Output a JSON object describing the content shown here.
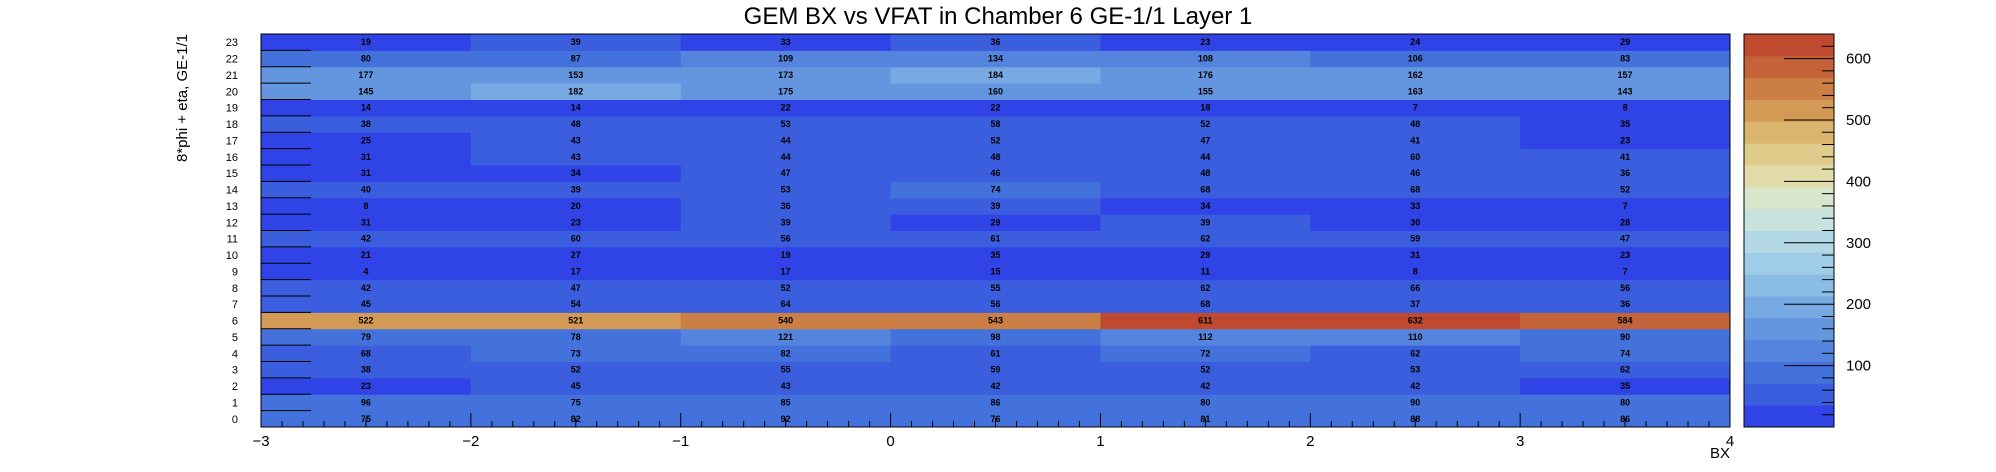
{
  "chart_data": {
    "type": "heatmap",
    "title": "GEM BX vs VFAT in Chamber 6 GE-1/1 Layer 1",
    "xlabel": "BX",
    "ylabel": "8*phi + eta, GE-1/1",
    "x_bins": [
      -3,
      -2,
      -1,
      0,
      1,
      2,
      3
    ],
    "x_bin_width": 1,
    "xlim": [
      -3,
      4
    ],
    "x_ticks": [
      "−3",
      "−2",
      "−1",
      "0",
      "1",
      "2",
      "3",
      "4"
    ],
    "y_bins": [
      0,
      1,
      2,
      3,
      4,
      5,
      6,
      7,
      8,
      9,
      10,
      11,
      12,
      13,
      14,
      15,
      16,
      17,
      18,
      19,
      20,
      21,
      22,
      23
    ],
    "ylim": [
      0,
      24
    ],
    "zlim": [
      0,
      640
    ],
    "z_ticks": [
      100,
      200,
      300,
      400,
      500,
      600
    ],
    "values": [
      [
        75,
        82,
        92,
        76,
        81,
        88,
        86
      ],
      [
        96,
        75,
        85,
        86,
        80,
        90,
        80
      ],
      [
        23,
        45,
        43,
        42,
        42,
        42,
        35
      ],
      [
        38,
        52,
        55,
        59,
        52,
        53,
        62
      ],
      [
        68,
        73,
        82,
        61,
        72,
        62,
        74
      ],
      [
        79,
        78,
        121,
        98,
        112,
        110,
        90
      ],
      [
        522,
        521,
        540,
        543,
        611,
        632,
        584
      ],
      [
        45,
        54,
        64,
        56,
        68,
        37,
        36
      ],
      [
        42,
        47,
        52,
        55,
        62,
        66,
        56
      ],
      [
        4,
        17,
        17,
        15,
        11,
        8,
        7
      ],
      [
        21,
        27,
        19,
        35,
        29,
        31,
        23
      ],
      [
        42,
        60,
        56,
        61,
        62,
        59,
        47
      ],
      [
        31,
        23,
        39,
        29,
        39,
        30,
        28
      ],
      [
        8,
        20,
        36,
        39,
        34,
        33,
        7
      ],
      [
        40,
        39,
        53,
        74,
        68,
        68,
        52
      ],
      [
        31,
        34,
        47,
        46,
        48,
        46,
        36
      ],
      [
        31,
        43,
        44,
        48,
        44,
        60,
        41
      ],
      [
        25,
        43,
        44,
        52,
        47,
        41,
        23
      ],
      [
        38,
        48,
        53,
        58,
        52,
        48,
        35
      ],
      [
        14,
        14,
        22,
        22,
        18,
        7,
        8
      ],
      [
        145,
        182,
        175,
        160,
        155,
        163,
        143
      ],
      [
        177,
        153,
        173,
        184,
        176,
        162,
        157
      ],
      [
        80,
        87,
        109,
        134,
        108,
        106,
        83
      ],
      [
        19,
        39,
        33,
        36,
        23,
        24,
        29
      ]
    ],
    "palette": [
      "#2f43e6",
      "#3b5ede",
      "#4472dc",
      "#5484dd",
      "#6496e0",
      "#77a9e2",
      "#8bbce3",
      "#9fcce6",
      "#b3dae4",
      "#c8e3de",
      "#dae6cc",
      "#e2dcab",
      "#dfcb8a",
      "#d9b56e",
      "#d29a55",
      "#cb7f45",
      "#c4623a",
      "#bf4a30"
    ]
  }
}
